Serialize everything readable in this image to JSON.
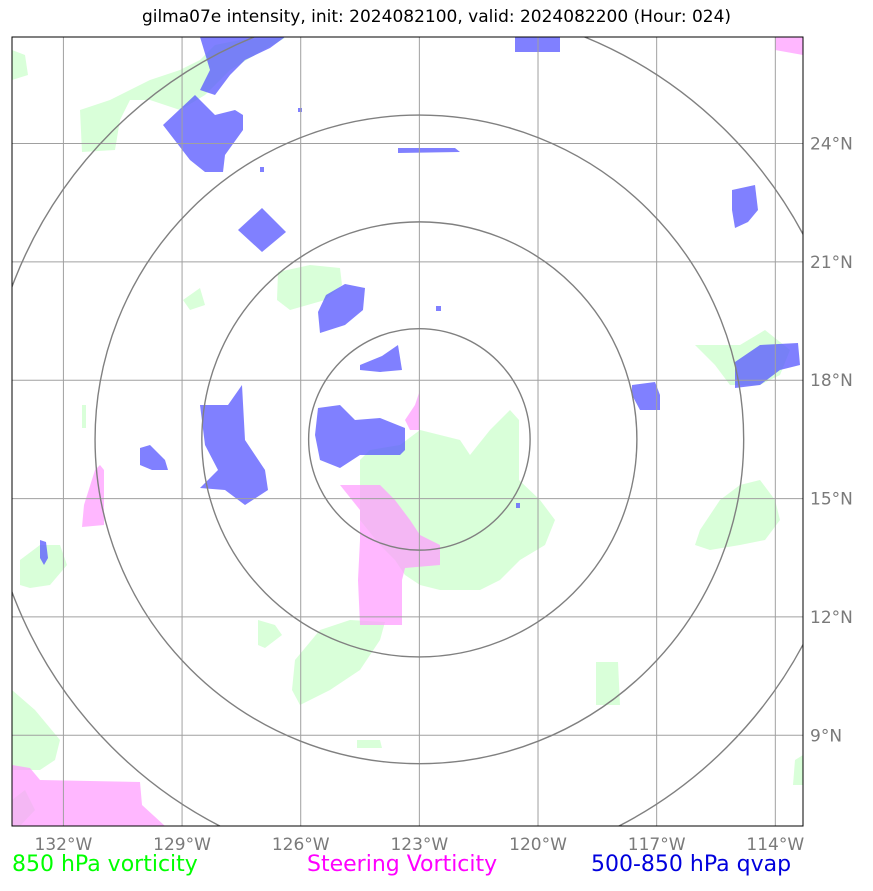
{
  "title": "gilma07e intensity, init: 2024082100, valid: 2024082200 (Hour: 024)",
  "map": {
    "lon_range": [
      -133.3,
      -113.3
    ],
    "lat_range": [
      6.7,
      26.7
    ],
    "lon_ticks": [
      {
        "value": -132,
        "label": "132°W"
      },
      {
        "value": -129,
        "label": "129°W"
      },
      {
        "value": -126,
        "label": "126°W"
      },
      {
        "value": -123,
        "label": "123°W"
      },
      {
        "value": -120,
        "label": "120°W"
      },
      {
        "value": -117,
        "label": "117°W"
      },
      {
        "value": -114,
        "label": "114°W"
      }
    ],
    "lat_ticks": [
      {
        "value": 9,
        "label": "9°N"
      },
      {
        "value": 12,
        "label": "12°N"
      },
      {
        "value": 15,
        "label": "15°N"
      },
      {
        "value": 18,
        "label": "18°N"
      },
      {
        "value": 21,
        "label": "21°N"
      },
      {
        "value": 24,
        "label": "24°N"
      }
    ],
    "storm_center": {
      "lon": -123.0,
      "lat": 16.5
    },
    "range_rings_deg": [
      2.8,
      5.5,
      8.2,
      11.0
    ]
  },
  "legend": {
    "left": {
      "label": "850 hPa vorticity",
      "color": "#00ff00"
    },
    "center": {
      "label": "Steering Vorticity",
      "color": "#ff00ff"
    },
    "right": {
      "label": "500-850 hPa qvap",
      "color": "#0000dd"
    }
  },
  "colors": {
    "vorticity_850_fill": "#ccffcc",
    "steering_vorticity_fill": "#ff99ff",
    "qvap_fill": "#5555ff",
    "grid": "#a0a0a0",
    "rings": "#808080"
  }
}
